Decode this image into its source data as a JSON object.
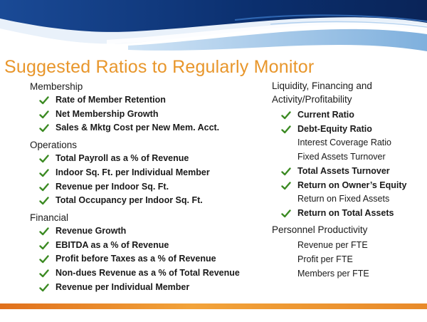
{
  "title": "Suggested Ratios to Regularly Monitor",
  "colors": {
    "title": "#e8962b",
    "check": "#3b8a22",
    "banner_dark": "#0b2f6e",
    "bar": "#e0701c"
  },
  "left": {
    "sections": [
      {
        "heading": "Membership",
        "items": [
          {
            "label": "Rate of Member Retention",
            "checked": true
          },
          {
            "label": "Net Membership Growth",
            "checked": true
          },
          {
            "label": "Sales & Mktg Cost per New Mem. Acct.",
            "checked": true
          }
        ]
      },
      {
        "heading": "Operations",
        "items": [
          {
            "label": "Total Payroll as a % of Revenue",
            "checked": true
          },
          {
            "label": "Indoor Sq. Ft. per Individual Member",
            "checked": true
          },
          {
            "label": "Revenue per Indoor Sq. Ft.",
            "checked": true
          },
          {
            "label": "Total Occupancy per Indoor Sq. Ft.",
            "checked": true
          }
        ]
      },
      {
        "heading": "Financial",
        "items": [
          {
            "label": "Revenue Growth",
            "checked": true
          },
          {
            "label": "EBITDA as a % of Revenue",
            "checked": true
          },
          {
            "label": "Profit before Taxes as a % of Revenue",
            "checked": true
          },
          {
            "label": "Non-dues Revenue as a % of Total Revenue",
            "checked": true
          },
          {
            "label": "Revenue per Individual Member",
            "checked": true
          }
        ]
      }
    ]
  },
  "right": {
    "sections": [
      {
        "heading_line1": "Liquidity, Financing and",
        "heading_line2": "Activity/Profitability",
        "items": [
          {
            "label": "Current Ratio",
            "checked": true
          },
          {
            "label": "Debt-Equity Ratio",
            "checked": true
          },
          {
            "label": "Interest Coverage Ratio",
            "checked": false
          },
          {
            "label": "Fixed Assets Turnover",
            "checked": false
          },
          {
            "label": "Total Assets Turnover",
            "checked": true
          },
          {
            "label": "Return on Owner’s Equity",
            "checked": true
          },
          {
            "label": "Return on Fixed Assets",
            "checked": false
          },
          {
            "label": "Return on Total Assets",
            "checked": true
          }
        ]
      },
      {
        "heading_line1": "Personnel Productivity",
        "items": [
          {
            "label": "Revenue per FTE",
            "checked": false
          },
          {
            "label": "Profit per FTE",
            "checked": false
          },
          {
            "label": "Members per FTE",
            "checked": false
          }
        ]
      }
    ]
  }
}
